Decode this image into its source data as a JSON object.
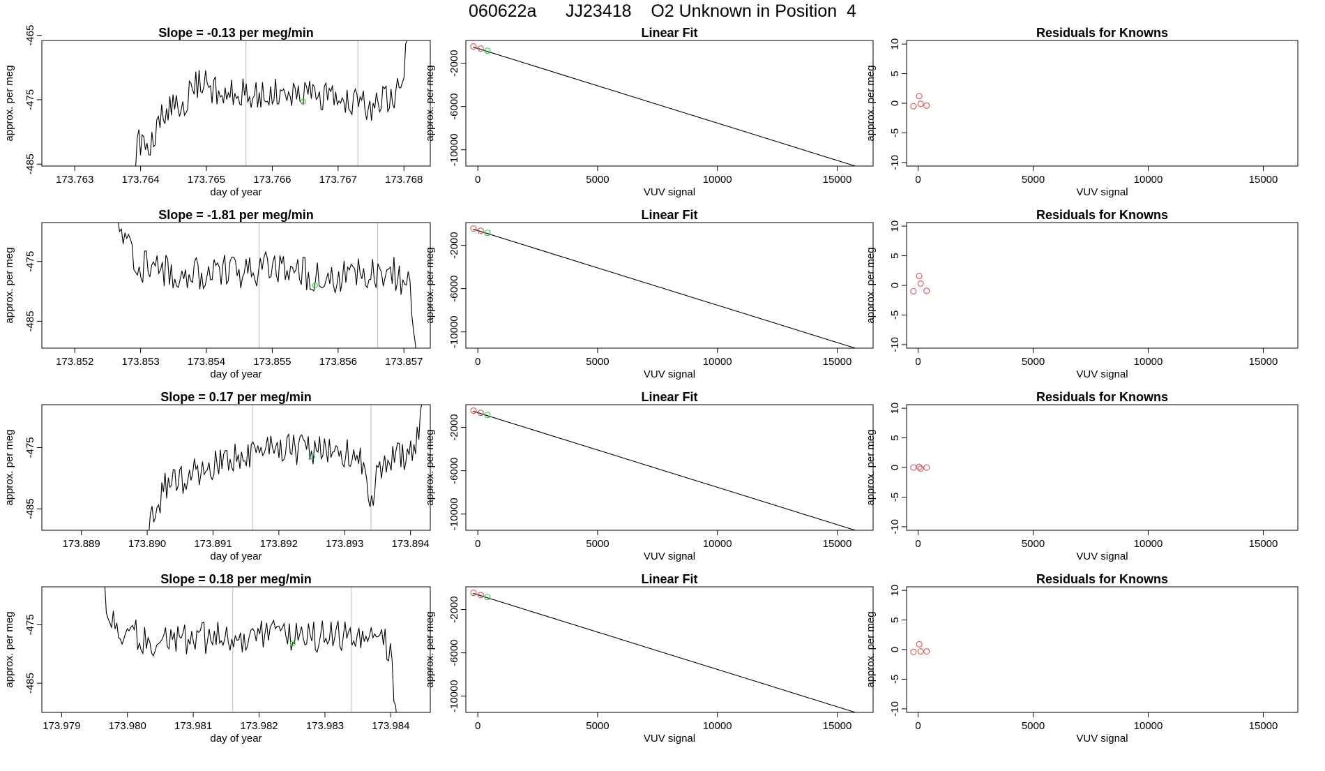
{
  "page": {
    "title": "060622a      JJ23418    O2 Unknown in Position  4",
    "colors": {
      "axis": "#000000",
      "trace": "#000000",
      "known": "#d9534f",
      "unknown": "#2ecc40",
      "cycle_line": "#bbbbbb"
    }
  },
  "chart_data": [
    {
      "type": "line",
      "row": 1,
      "panel": "time-series",
      "title": "Slope =  -0.13  per meg/min",
      "xlabel": "day of year",
      "ylabel": "approx. per meg",
      "xlim": [
        173.7625,
        173.7684
      ],
      "ylim": [
        -485.3,
        -465.8
      ],
      "xticks": [
        173.763,
        173.764,
        173.765,
        173.766,
        173.767,
        173.768
      ],
      "xtick_labels": [
        "173.763",
        "173.764",
        "173.765",
        "173.766",
        "173.767",
        "173.768"
      ],
      "yticks": [
        -465,
        -475,
        -485
      ],
      "ytick_labels": [
        "-465",
        "-475",
        "-485"
      ],
      "vlines": [
        173.7656,
        173.7673
      ],
      "trace_start": 173.7639,
      "trace_end": 173.7681,
      "trace_profile": [
        [
          173.7639,
          -490
        ],
        [
          173.76395,
          -481
        ],
        [
          173.7641,
          -484
        ],
        [
          173.7643,
          -477
        ],
        [
          173.7646,
          -476
        ],
        [
          173.7649,
          -472
        ],
        [
          173.7652,
          -474
        ],
        [
          173.7655,
          -474
        ],
        [
          173.7665,
          -474
        ],
        [
          173.7675,
          -476
        ],
        [
          173.7679,
          -474
        ],
        [
          173.768,
          -470
        ],
        [
          173.7681,
          -460
        ]
      ],
      "noise_amplitude": 2.3,
      "unknown_marker": {
        "x": 173.76647,
        "y": -475.3
      }
    },
    {
      "type": "scatter",
      "row": 1,
      "panel": "linear-fit",
      "title": "Linear Fit",
      "xlabel": "VUV signal",
      "ylabel": "approx. per meg",
      "xlim": [
        -500,
        16500
      ],
      "ylim": [
        -11500,
        100
      ],
      "xticks": [
        0,
        5000,
        10000,
        15000
      ],
      "xtick_labels": [
        "0",
        "5000",
        "10000",
        "15000"
      ],
      "yticks": [
        -2000,
        -6000,
        -10000
      ],
      "ytick_labels": [
        "-2000",
        "-6000",
        "-10000"
      ],
      "fit_line": {
        "x": [
          -200,
          15900
        ],
        "y": [
          -500,
          -11600
        ]
      },
      "known_points": [
        {
          "x": -180,
          "y": -450
        },
        {
          "x": 120,
          "y": -650
        }
      ],
      "unknown_points": [
        {
          "x": 400,
          "y": -850
        }
      ]
    },
    {
      "type": "scatter",
      "row": 1,
      "panel": "residuals",
      "title": "Residuals for Knowns",
      "xlabel": "VUV signal",
      "ylabel": "approx. per meg",
      "xlim": [
        -500,
        16500
      ],
      "ylim": [
        -10.6,
        10.6
      ],
      "xticks": [
        0,
        5000,
        10000,
        15000
      ],
      "xtick_labels": [
        "0",
        "5000",
        "10000",
        "15000"
      ],
      "yticks": [
        10,
        5,
        0,
        -5,
        -10
      ],
      "ytick_labels": [
        "10",
        "5",
        "0",
        "-5",
        "-10"
      ],
      "points": [
        {
          "x": -200,
          "y": -0.5
        },
        {
          "x": 50,
          "y": 1.2
        },
        {
          "x": 110,
          "y": -0.1
        },
        {
          "x": 370,
          "y": -0.4
        }
      ]
    },
    {
      "type": "line",
      "row": 2,
      "panel": "time-series",
      "title": "Slope =  -1.81  per meg/min",
      "xlabel": "day of year",
      "ylabel": "approx. per meg",
      "xlim": [
        173.8515,
        173.8574
      ],
      "ylim": [
        -489.5,
        -468.5
      ],
      "xticks": [
        173.852,
        173.853,
        173.854,
        173.855,
        173.856,
        173.857
      ],
      "xtick_labels": [
        "173.852",
        "173.853",
        "173.854",
        "173.855",
        "173.856",
        "173.857"
      ],
      "yticks": [
        -475,
        -485
      ],
      "ytick_labels": [
        "-475",
        "-485"
      ],
      "vlines": [
        173.8548,
        173.8566
      ],
      "trace_start": 173.8526,
      "trace_end": 173.8572,
      "trace_profile": [
        [
          173.8526,
          -466
        ],
        [
          173.8528,
          -473
        ],
        [
          173.853,
          -476
        ],
        [
          173.854,
          -477
        ],
        [
          173.855,
          -476
        ],
        [
          173.856,
          -478
        ],
        [
          173.8568,
          -476
        ],
        [
          173.8571,
          -480
        ],
        [
          173.8572,
          -492
        ]
      ],
      "noise_amplitude": 3.0,
      "unknown_marker": {
        "x": 173.85565,
        "y": -479.0
      }
    },
    {
      "type": "scatter",
      "row": 2,
      "panel": "linear-fit",
      "title": "Linear Fit",
      "xlabel": "VUV signal",
      "ylabel": "approx. per meg",
      "xlim": [
        -500,
        16500
      ],
      "ylim": [
        -11500,
        100
      ],
      "xticks": [
        0,
        5000,
        10000,
        15000
      ],
      "xtick_labels": [
        "0",
        "5000",
        "10000",
        "15000"
      ],
      "yticks": [
        -2000,
        -6000,
        -10000
      ],
      "ytick_labels": [
        "-2000",
        "-6000",
        "-10000"
      ],
      "fit_line": {
        "x": [
          -200,
          15900
        ],
        "y": [
          -500,
          -11600
        ]
      },
      "known_points": [
        {
          "x": -180,
          "y": -450
        },
        {
          "x": 120,
          "y": -650
        }
      ],
      "unknown_points": [
        {
          "x": 400,
          "y": -850
        }
      ]
    },
    {
      "type": "scatter",
      "row": 2,
      "panel": "residuals",
      "title": "Residuals for Knowns",
      "xlabel": "VUV signal",
      "ylabel": "approx. per meg",
      "xlim": [
        -500,
        16500
      ],
      "ylim": [
        -10.6,
        10.6
      ],
      "xticks": [
        0,
        5000,
        10000,
        15000
      ],
      "xtick_labels": [
        "0",
        "5000",
        "10000",
        "15000"
      ],
      "yticks": [
        10,
        5,
        0,
        -5,
        -10
      ],
      "ytick_labels": [
        "10",
        "5",
        "0",
        "-5",
        "-10"
      ],
      "points": [
        {
          "x": -200,
          "y": -1.0
        },
        {
          "x": 50,
          "y": 1.6
        },
        {
          "x": 110,
          "y": 0.3
        },
        {
          "x": 370,
          "y": -0.9
        }
      ]
    },
    {
      "type": "line",
      "row": 3,
      "panel": "time-series",
      "title": "Slope =  0.17  per meg/min",
      "xlabel": "day of year",
      "ylabel": "approx. per meg",
      "xlim": [
        173.8884,
        173.8943
      ],
      "ylim": [
        -488.5,
        -468.0
      ],
      "xticks": [
        173.889,
        173.89,
        173.891,
        173.892,
        173.893,
        173.894
      ],
      "xtick_labels": [
        "173.889",
        "173.890",
        "173.891",
        "173.892",
        "173.893",
        "173.894"
      ],
      "yticks": [
        -475,
        -485
      ],
      "ytick_labels": [
        "-475",
        "-485"
      ],
      "vlines": [
        173.8916,
        173.8934
      ],
      "trace_start": 173.89,
      "trace_end": 173.8942,
      "trace_profile": [
        [
          173.89,
          -490
        ],
        [
          173.8901,
          -486
        ],
        [
          173.8903,
          -481
        ],
        [
          173.8908,
          -479
        ],
        [
          173.8913,
          -477
        ],
        [
          173.892,
          -475
        ],
        [
          173.893,
          -476
        ],
        [
          173.8933,
          -477
        ],
        [
          173.8934,
          -485
        ],
        [
          173.8935,
          -478
        ],
        [
          173.894,
          -476
        ],
        [
          173.8941,
          -473
        ],
        [
          173.8942,
          -466
        ]
      ],
      "noise_amplitude": 2.6,
      "unknown_marker": {
        "x": 173.89251,
        "y": -476.5
      }
    },
    {
      "type": "scatter",
      "row": 3,
      "panel": "linear-fit",
      "title": "Linear Fit",
      "xlabel": "VUV signal",
      "ylabel": "approx. per meg",
      "xlim": [
        -500,
        16500
      ],
      "ylim": [
        -11500,
        100
      ],
      "xticks": [
        0,
        5000,
        10000,
        15000
      ],
      "xtick_labels": [
        "0",
        "5000",
        "10000",
        "15000"
      ],
      "yticks": [
        -2000,
        -6000,
        -10000
      ],
      "ytick_labels": [
        "-2000",
        "-6000",
        "-10000"
      ],
      "fit_line": {
        "x": [
          -200,
          15900
        ],
        "y": [
          -500,
          -11600
        ]
      },
      "known_points": [
        {
          "x": -180,
          "y": -450
        },
        {
          "x": 120,
          "y": -650
        }
      ],
      "unknown_points": [
        {
          "x": 400,
          "y": -850
        }
      ]
    },
    {
      "type": "scatter",
      "row": 3,
      "panel": "residuals",
      "title": "Residuals for Knowns",
      "xlabel": "VUV signal",
      "ylabel": "approx. per meg",
      "xlim": [
        -500,
        16500
      ],
      "ylim": [
        -10.6,
        10.6
      ],
      "xticks": [
        0,
        5000,
        10000,
        15000
      ],
      "xtick_labels": [
        "0",
        "5000",
        "10000",
        "15000"
      ],
      "yticks": [
        10,
        5,
        0,
        -5,
        -10
      ],
      "ytick_labels": [
        "10",
        "5",
        "0",
        "-5",
        "-10"
      ],
      "points": [
        {
          "x": -200,
          "y": 0.0
        },
        {
          "x": 50,
          "y": 0.1
        },
        {
          "x": 110,
          "y": -0.2
        },
        {
          "x": 370,
          "y": 0.0
        }
      ]
    },
    {
      "type": "line",
      "row": 4,
      "panel": "time-series",
      "title": "Slope =  0.18  per meg/min",
      "xlabel": "day of year",
      "ylabel": "approx. per meg",
      "xlim": [
        173.9787,
        173.9846
      ],
      "ylim": [
        -490.0,
        -468.5
      ],
      "xticks": [
        173.979,
        173.98,
        173.981,
        173.982,
        173.983,
        173.984
      ],
      "xtick_labels": [
        "173.979",
        "173.980",
        "173.981",
        "173.982",
        "173.983",
        "173.984"
      ],
      "yticks": [
        -475,
        -485
      ],
      "ytick_labels": [
        "-475",
        "-485"
      ],
      "vlines": [
        173.9816,
        173.9834
      ],
      "trace_start": 173.9796,
      "trace_end": 173.9841,
      "trace_profile": [
        [
          173.9796,
          -466
        ],
        [
          173.9797,
          -472
        ],
        [
          173.9799,
          -476
        ],
        [
          173.9805,
          -478
        ],
        [
          173.9815,
          -477
        ],
        [
          173.9825,
          -477
        ],
        [
          173.9835,
          -477
        ],
        [
          173.9839,
          -478
        ],
        [
          173.984,
          -480
        ],
        [
          173.9841,
          -492
        ]
      ],
      "noise_amplitude": 2.8,
      "unknown_marker": {
        "x": 173.98251,
        "y": -478.2
      }
    },
    {
      "type": "scatter",
      "row": 4,
      "panel": "linear-fit",
      "title": "Linear Fit",
      "xlabel": "VUV signal",
      "ylabel": "approx. per meg",
      "xlim": [
        -500,
        16500
      ],
      "ylim": [
        -11500,
        100
      ],
      "xticks": [
        0,
        5000,
        10000,
        15000
      ],
      "xtick_labels": [
        "0",
        "5000",
        "10000",
        "15000"
      ],
      "yticks": [
        -2000,
        -6000,
        -10000
      ],
      "ytick_labels": [
        "-2000",
        "-6000",
        "-10000"
      ],
      "fit_line": {
        "x": [
          -200,
          15900
        ],
        "y": [
          -500,
          -11600
        ]
      },
      "known_points": [
        {
          "x": -180,
          "y": -450
        },
        {
          "x": 120,
          "y": -650
        }
      ],
      "unknown_points": [
        {
          "x": 400,
          "y": -850
        }
      ]
    },
    {
      "type": "scatter",
      "row": 4,
      "panel": "residuals",
      "title": "Residuals for Knowns",
      "xlabel": "VUV signal",
      "ylabel": "approx. per meg",
      "xlim": [
        -500,
        16500
      ],
      "ylim": [
        -10.6,
        10.6
      ],
      "xticks": [
        0,
        5000,
        10000,
        15000
      ],
      "xtick_labels": [
        "0",
        "5000",
        "10000",
        "15000"
      ],
      "yticks": [
        10,
        5,
        0,
        -5,
        -10
      ],
      "ytick_labels": [
        "10",
        "5",
        "0",
        "-5",
        "-10"
      ],
      "points": [
        {
          "x": -200,
          "y": -0.4
        },
        {
          "x": 50,
          "y": 0.9
        },
        {
          "x": 110,
          "y": -0.3
        },
        {
          "x": 370,
          "y": -0.3
        }
      ]
    }
  ]
}
